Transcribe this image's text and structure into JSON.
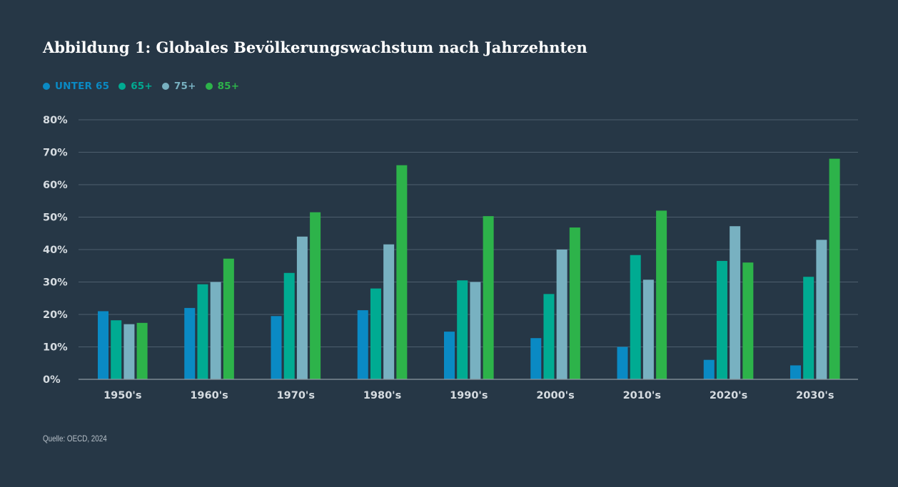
{
  "chart_data": {
    "type": "bar",
    "title": "Abbildung 1: Globales Bevölkerungswachstum nach Jahrzehnten",
    "categories": [
      "1950's",
      "1960's",
      "1970's",
      "1980's",
      "1990's",
      "2000's",
      "2010's",
      "2020's",
      "2030's"
    ],
    "series": [
      {
        "name": "UNTER 65",
        "color": "#0a8ac4",
        "values": [
          21,
          22,
          19.5,
          21.3,
          14.7,
          12.7,
          10,
          6,
          4.3
        ]
      },
      {
        "name": "65+",
        "color": "#00ab92",
        "values": [
          18.2,
          29.3,
          32.8,
          28,
          30.5,
          26.3,
          38.3,
          36.5,
          31.6
        ]
      },
      {
        "name": "75+",
        "color": "#78b1c1",
        "values": [
          17,
          30,
          44,
          41.6,
          30,
          40,
          30.7,
          47.2,
          43
        ]
      },
      {
        "name": "85+",
        "color": "#2db34a",
        "values": [
          17.4,
          37.2,
          51.5,
          66,
          50.3,
          46.8,
          52,
          36,
          68
        ]
      }
    ],
    "y_ticks": [
      "0%",
      "10%",
      "20%",
      "30%",
      "40%",
      "50%",
      "60%",
      "70%",
      "80%"
    ],
    "ylim": [
      0,
      80
    ],
    "xlabel": "",
    "ylabel": "",
    "grid": true,
    "legend_position": "top-left"
  },
  "source": "Quelle: OECD, 2024",
  "colors": {
    "background": "#263746",
    "gridline": "#4d5f6e",
    "axis": "#8e9aa4",
    "tick_text": "#d6dce1"
  }
}
